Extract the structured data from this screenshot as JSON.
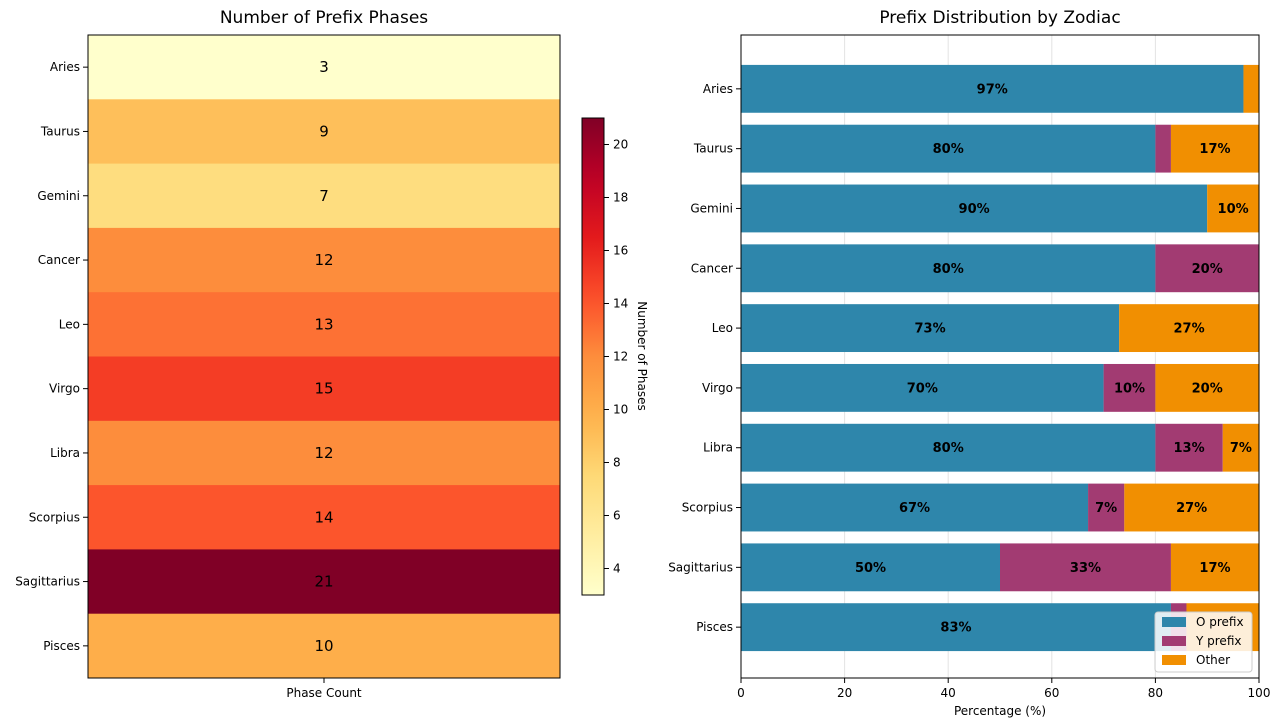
{
  "chart_data": [
    {
      "type": "heatmap",
      "title": "Number of Prefix Phases",
      "xlabel": "",
      "x_tick_labels": [
        "Phase Count"
      ],
      "categories": [
        "Aries",
        "Taurus",
        "Gemini",
        "Cancer",
        "Leo",
        "Virgo",
        "Libra",
        "Scorpius",
        "Sagittarius",
        "Pisces"
      ],
      "values": [
        3,
        9,
        7,
        12,
        13,
        15,
        12,
        14,
        21,
        10
      ],
      "colormap": "YlOrRd",
      "colorbar": {
        "label": "Number of Phases",
        "range": [
          3,
          21
        ],
        "ticks": [
          4,
          6,
          8,
          10,
          12,
          14,
          16,
          18,
          20
        ]
      },
      "grid": false
    },
    {
      "type": "bar",
      "orientation": "horizontal",
      "stacked": true,
      "title": "Prefix Distribution by Zodiac",
      "xlabel": "Percentage (%)",
      "ylabel": "",
      "xlim": [
        0,
        100
      ],
      "x_ticks": [
        0,
        20,
        40,
        60,
        80,
        100
      ],
      "categories": [
        "Aries",
        "Taurus",
        "Gemini",
        "Cancer",
        "Leo",
        "Virgo",
        "Libra",
        "Scorpius",
        "Sagittarius",
        "Pisces"
      ],
      "series": [
        {
          "name": "O prefix",
          "color": "#2e86ab",
          "values": [
            97,
            80,
            90,
            80,
            73,
            70,
            80,
            67,
            50,
            83
          ],
          "labels": [
            "97%",
            "80%",
            "90%",
            "80%",
            "73%",
            "70%",
            "80%",
            "67%",
            "50%",
            "83%"
          ]
        },
        {
          "name": "Y prefix",
          "color": "#a23b72",
          "values": [
            0,
            3,
            0,
            20,
            0,
            10,
            13,
            7,
            33,
            3
          ],
          "labels": [
            "",
            "",
            "",
            "20%",
            "",
            "10%",
            "13%",
            "7%",
            "33%",
            ""
          ]
        },
        {
          "name": "Other",
          "color": "#f18f01",
          "values": [
            3,
            17,
            10,
            0,
            27,
            20,
            7,
            27,
            17,
            14
          ],
          "labels": [
            "",
            "17%",
            "10%",
            "",
            "27%",
            "20%",
            "7%",
            "27%",
            "17%",
            ""
          ]
        }
      ],
      "grid": true,
      "legend_position": "lower-right"
    }
  ]
}
